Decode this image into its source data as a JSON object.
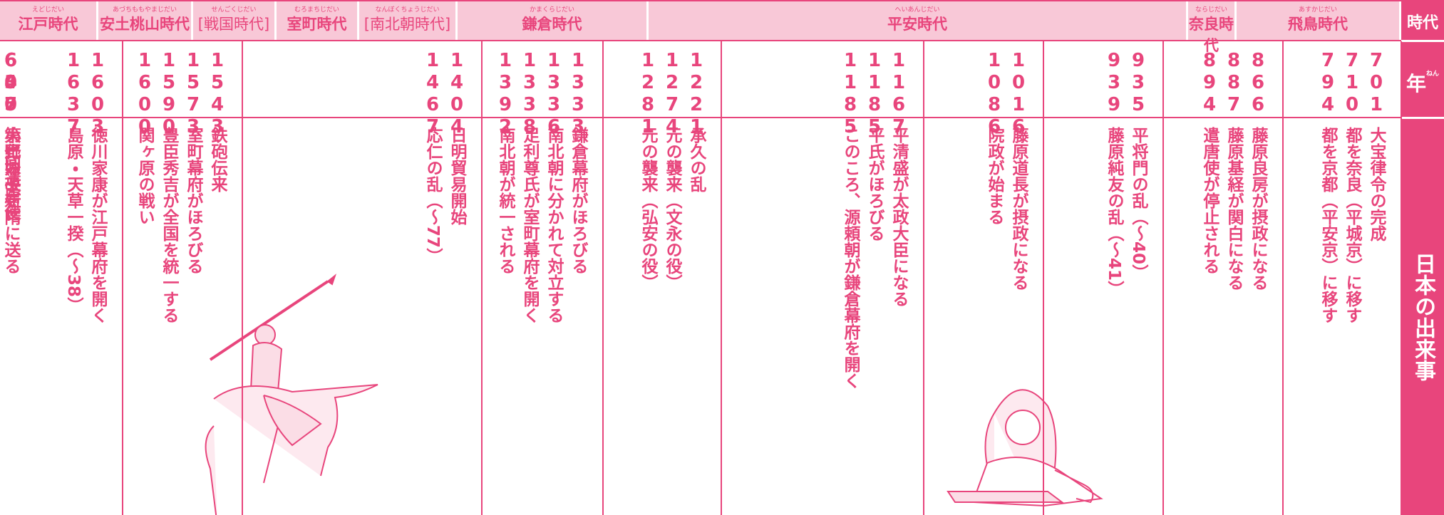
{
  "header": {
    "label": "時代",
    "eras": [
      {
        "name": "江戸時代",
        "ruby": "えどじだい"
      },
      {
        "name": "安土桃山時代",
        "ruby": "あづちももやまじだい"
      },
      {
        "name": "[戦国時代]",
        "ruby": "せんごくじだい"
      },
      {
        "name": "室町時代",
        "ruby": "むろまちじだい"
      },
      {
        "name": "[南北朝時代]",
        "ruby": "なんぼくちょうじだい"
      },
      {
        "name": "鎌倉時代",
        "ruby": "かまくらじだい"
      },
      {
        "name": "平安時代",
        "ruby": "へいあんじだい"
      },
      {
        "name": "奈良時代",
        "ruby": "ならじだい"
      },
      {
        "name": "飛鳥時代",
        "ruby": "あすかじだい"
      }
    ]
  },
  "side": {
    "year_label": "年",
    "year_ruby": "ねん",
    "events_label": "日本の出来事"
  },
  "columns": [
    {
      "years": [
        1637,
        1603
      ],
      "events": [
        "島原・天草一揆（〜38）",
        "徳川家康が江戸幕府を開く"
      ]
    },
    {
      "years": [
        1600,
        1590,
        1573,
        1543
      ],
      "events": [
        "関ヶ原の戦い",
        "豊臣秀吉が全国を統一する",
        "室町幕府がほろびる",
        "鉄砲伝来"
      ]
    },
    {
      "years": [
        1467,
        1404
      ],
      "events": [
        "応仁の乱（〜77）",
        "日明貿易開始"
      ]
    },
    {
      "years": [
        1392,
        1338,
        1336,
        1333
      ],
      "events": [
        "南北朝が統一される",
        "足利尊氏が室町幕府を開く",
        "南北朝に分かれて対立する",
        "鎌倉幕府がほろびる"
      ]
    },
    {
      "years": [
        1281,
        1274,
        1221
      ],
      "events": [
        "元の襲来（弘安の役）",
        "元の襲来（文永の役）",
        "承久の乱"
      ]
    },
    {
      "years": [
        1185,
        1185,
        1167
      ],
      "events": [
        "このころ、源頼朝が鎌倉幕府を開く",
        "平氏がほろびる",
        "平清盛が太政大臣になる"
      ]
    },
    {
      "years": [
        1086,
        1016
      ],
      "events": [
        "院政が始まる",
        "藤原道長が摂政になる"
      ]
    },
    {
      "years": [
        939,
        935
      ],
      "events": [
        "藤原純友の乱（〜41）",
        "平将門の乱（〜40）"
      ]
    },
    {
      "years": [
        894,
        887,
        866
      ],
      "events": [
        "遣唐使が停止される",
        "藤原基経が関白になる",
        "藤原良房が摂政になる"
      ]
    },
    {
      "years": [
        794,
        710,
        701
      ],
      "events": [
        "都を京都（平安京）に移す",
        "都を奈良（平城京）に移す",
        "大宝律令の完成"
      ]
    },
    {
      "years": [
        645,
        630,
        607
      ],
      "events": [
        "大化の改新",
        "第1回遣唐使",
        "小野妹子を隋に送る"
      ]
    }
  ]
}
